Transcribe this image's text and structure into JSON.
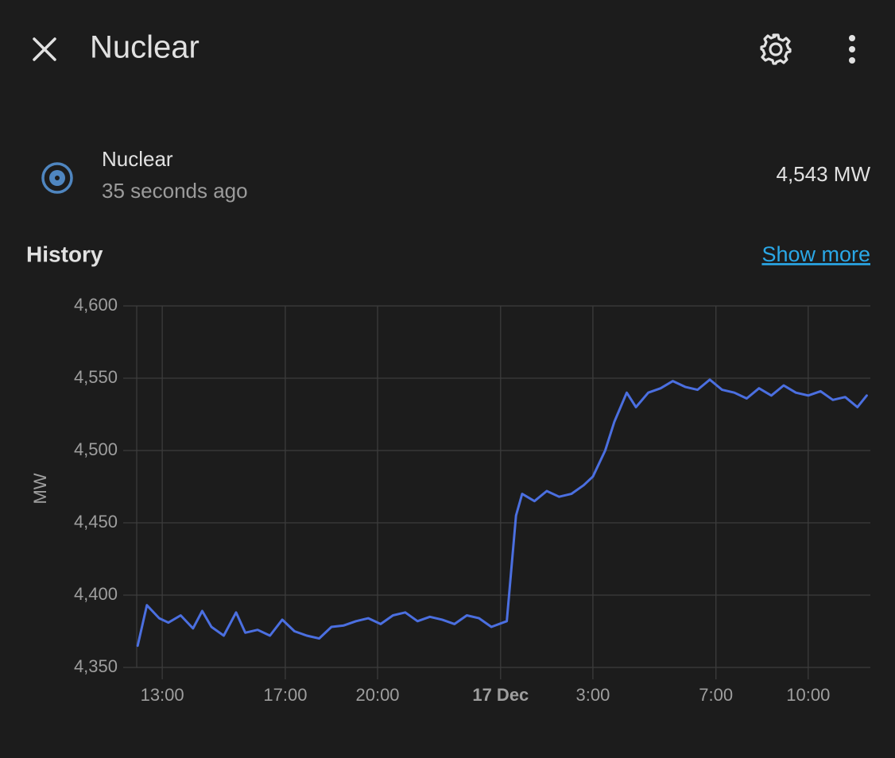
{
  "header": {
    "title": "Nuclear"
  },
  "entity": {
    "name": "Nuclear",
    "last_changed": "35 seconds ago",
    "state": "4,543 MW"
  },
  "history": {
    "title": "History",
    "link": "Show more"
  },
  "chart_data": {
    "type": "line",
    "color": "#4b6fe0",
    "ylabel": "MW",
    "x": [
      12.2,
      12.5,
      12.9,
      13.2,
      13.6,
      14.0,
      14.3,
      14.6,
      15.0,
      15.4,
      15.7,
      16.1,
      16.5,
      16.9,
      17.3,
      17.7,
      18.1,
      18.5,
      18.9,
      19.3,
      19.7,
      20.1,
      20.5,
      20.9,
      21.3,
      21.7,
      22.1,
      22.5,
      22.9,
      23.3,
      23.7,
      24.2,
      24.5,
      24.7,
      25.1,
      25.5,
      25.9,
      26.3,
      26.7,
      27.0,
      27.4,
      27.7,
      28.1,
      28.4,
      28.8,
      29.2,
      29.6,
      30.0,
      30.4,
      30.8,
      31.2,
      31.6,
      32.0,
      32.4,
      32.8,
      33.2,
      33.6,
      34.0,
      34.4,
      34.8,
      35.2,
      35.6,
      35.9
    ],
    "values": [
      4365,
      4393,
      4384,
      4381,
      4386,
      4377,
      4389,
      4378,
      4372,
      4388,
      4374,
      4376,
      4372,
      4383,
      4375,
      4372,
      4370,
      4378,
      4379,
      4382,
      4384,
      4380,
      4386,
      4388,
      4382,
      4385,
      4383,
      4380,
      4386,
      4384,
      4378,
      4382,
      4455,
      4470,
      4465,
      4472,
      4468,
      4470,
      4476,
      4482,
      4500,
      4520,
      4540,
      4530,
      4540,
      4543,
      4548,
      4544,
      4542,
      4549,
      4542,
      4540,
      4536,
      4543,
      4538,
      4545,
      4540,
      4538,
      4541,
      4535,
      4537,
      4530,
      4538
    ],
    "xlim": [
      12.17,
      36.02
    ],
    "xticks": [
      {
        "value": 13,
        "label": "13:00"
      },
      {
        "value": 17,
        "label": "17:00"
      },
      {
        "value": 20,
        "label": "20:00"
      },
      {
        "value": 24,
        "label": "17 Dec"
      },
      {
        "value": 27,
        "label": "3:00"
      },
      {
        "value": 31,
        "label": "7:00"
      },
      {
        "value": 34,
        "label": "10:00"
      }
    ],
    "ylim": [
      4350,
      4600
    ],
    "yticks": [
      {
        "value": 4350,
        "label": "4,350"
      },
      {
        "value": 4400,
        "label": "4,400"
      },
      {
        "value": 4450,
        "label": "4,450"
      },
      {
        "value": 4500,
        "label": "4,500"
      },
      {
        "value": 4550,
        "label": "4,550"
      },
      {
        "value": 4600,
        "label": "4,600"
      }
    ],
    "grid": true
  }
}
